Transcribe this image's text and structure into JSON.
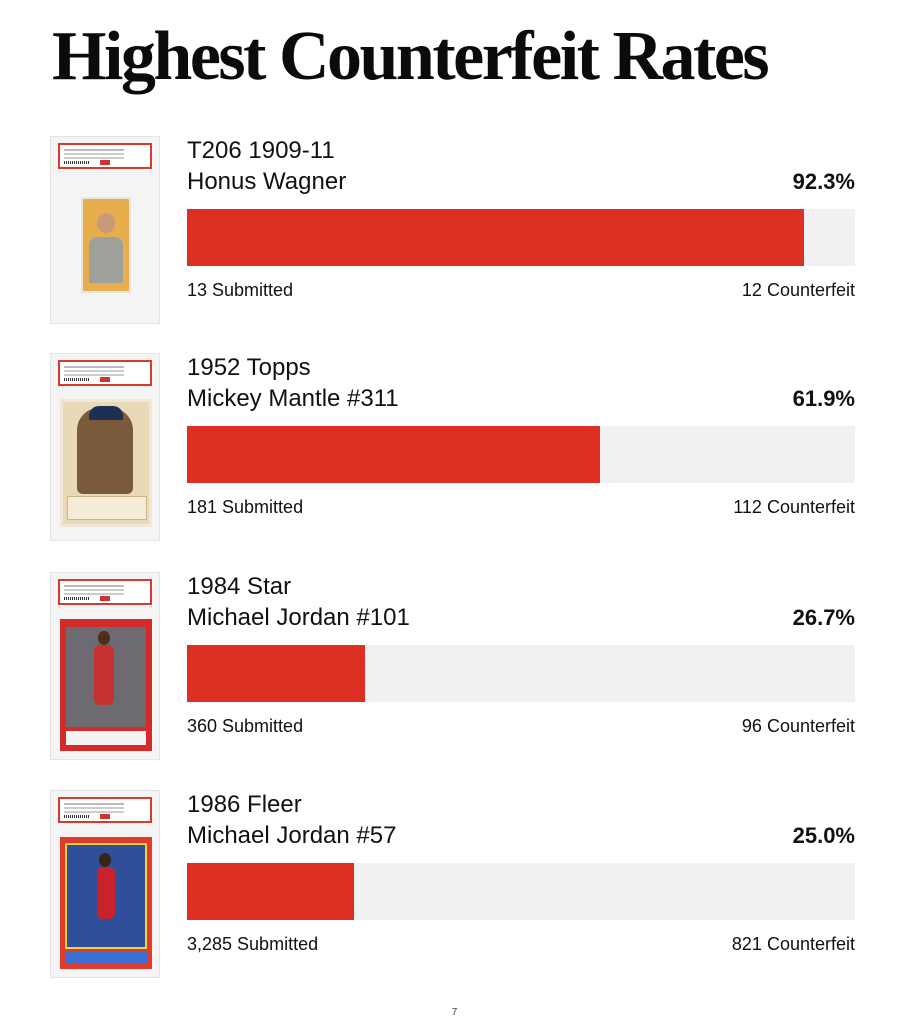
{
  "page": {
    "title": "Highest Counterfeit Rates",
    "page_number": "7"
  },
  "colors": {
    "bar_fill": "#de2f24",
    "bar_track": "#f1f1f1"
  },
  "cards": [
    {
      "name_line1": "T206 1909-11",
      "name_line2": "Honus Wagner",
      "percent": "92.3%",
      "submitted": "13 Submitted",
      "counterfeit": "12 Counterfeit"
    },
    {
      "name_line1": "1952 Topps",
      "name_line2": "Mickey Mantle #311",
      "percent": "61.9%",
      "submitted": "181 Submitted",
      "counterfeit": "112 Counterfeit"
    },
    {
      "name_line1": "1984 Star",
      "name_line2": "Michael Jordan #101",
      "percent": "26.7%",
      "submitted": "360 Submitted",
      "counterfeit": "96 Counterfeit"
    },
    {
      "name_line1": "1986 Fleer",
      "name_line2": "Michael Jordan #57",
      "percent": "25.0%",
      "submitted": "3,285 Submitted",
      "counterfeit": "821 Counterfeit"
    }
  ],
  "chart_data": {
    "type": "bar",
    "orientation": "horizontal",
    "title": "Highest Counterfeit Rates",
    "categories": [
      "T206 1909-11 Honus Wagner",
      "1952 Topps Mickey Mantle #311",
      "1984 Star Michael Jordan #101",
      "1986 Fleer Michael Jordan #57"
    ],
    "values": [
      92.3,
      61.9,
      26.7,
      25.0
    ],
    "submitted": [
      13,
      181,
      360,
      3285
    ],
    "counterfeit": [
      12,
      112,
      96,
      821
    ],
    "xlim": [
      0,
      100
    ],
    "grid": false,
    "legend": "none"
  }
}
